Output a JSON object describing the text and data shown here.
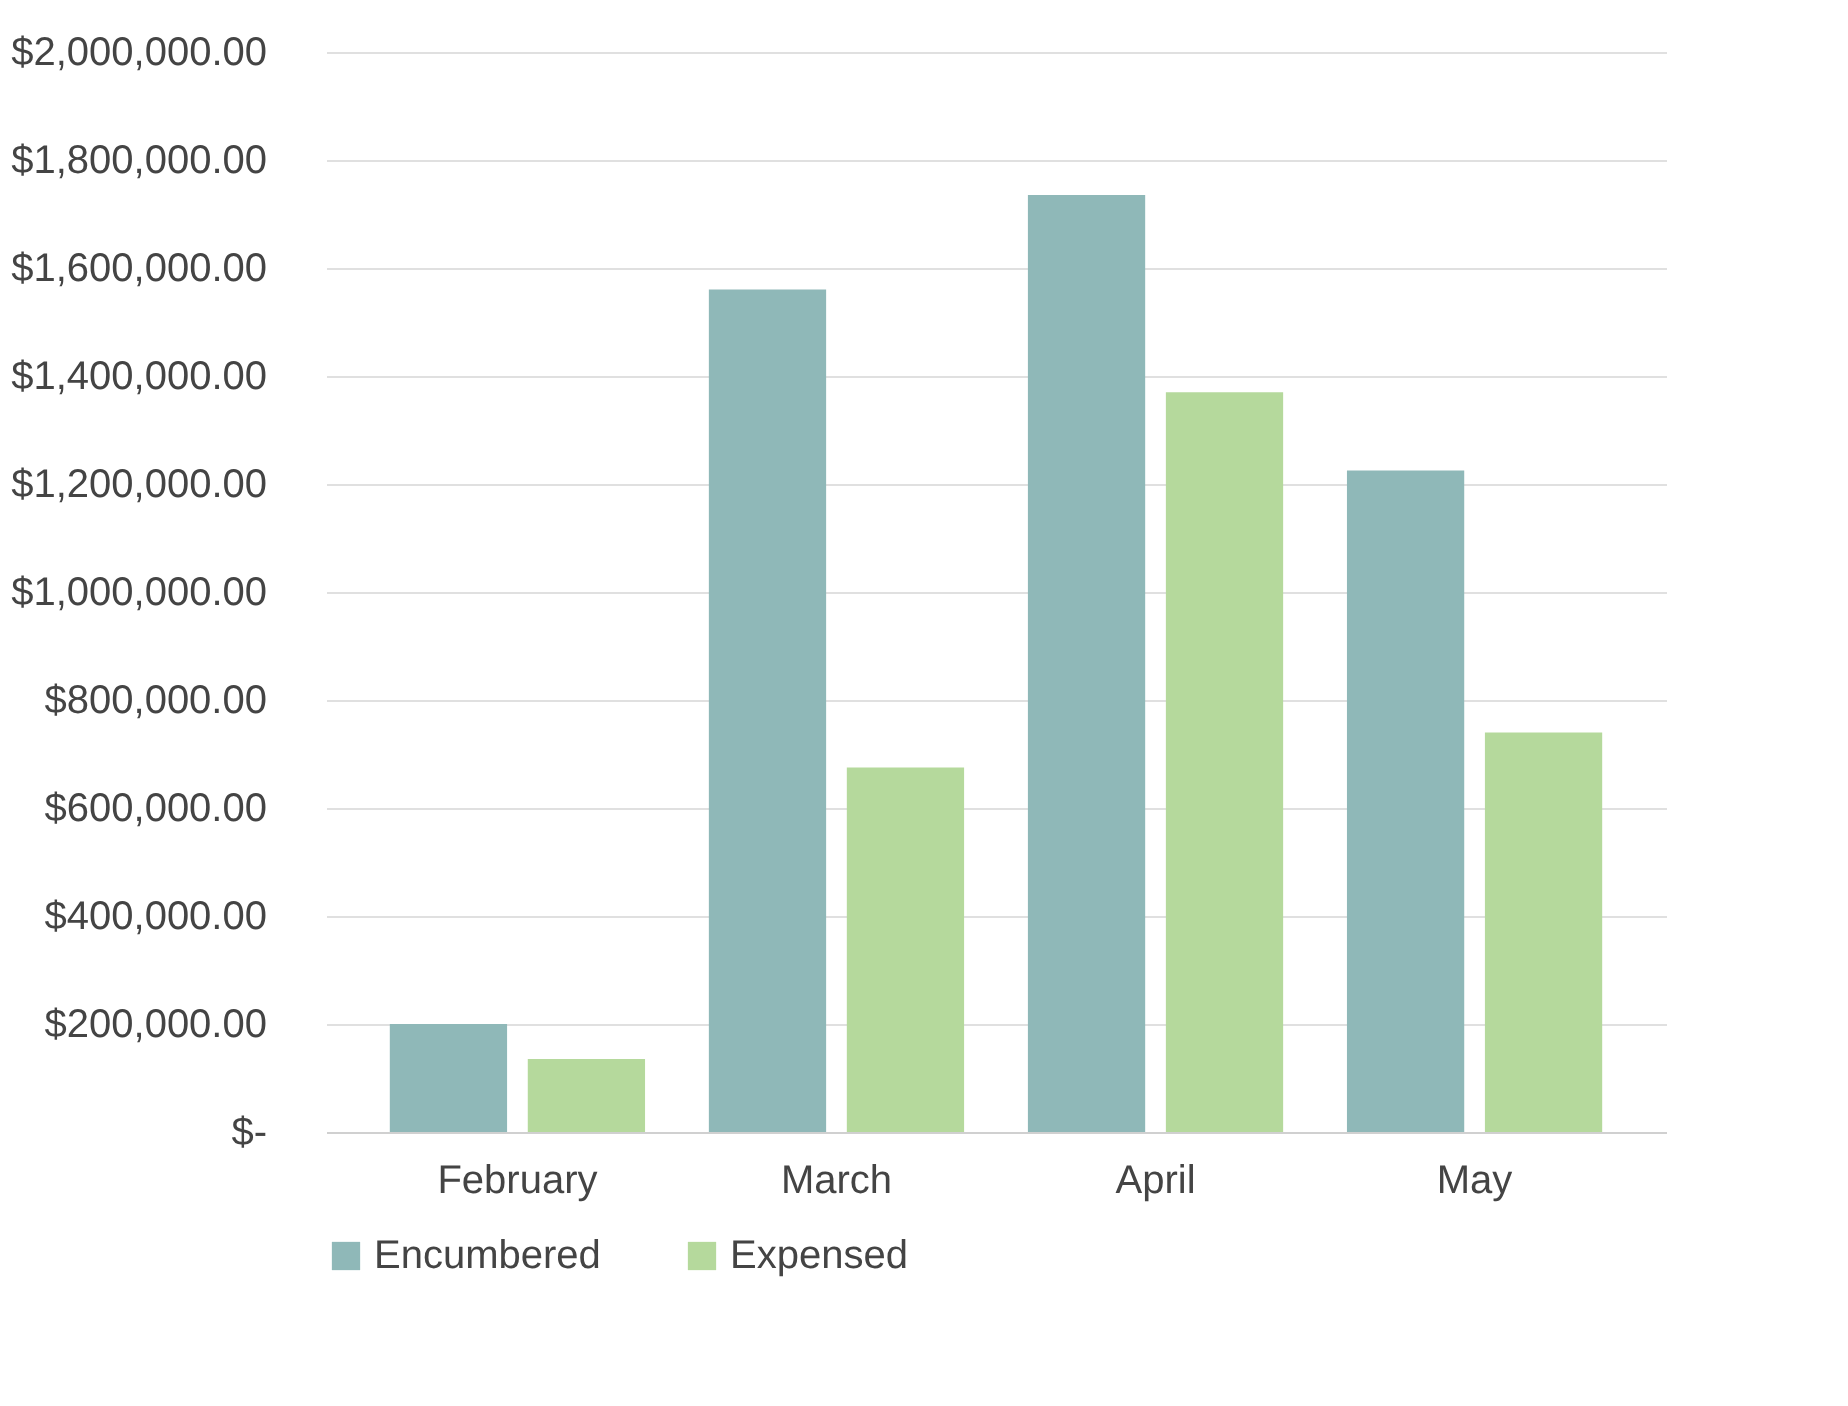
{
  "chart_data": {
    "type": "bar",
    "categories": [
      "February",
      "March",
      "April",
      "May"
    ],
    "series": [
      {
        "name": "Encumbered",
        "color": "#8fb8b8",
        "values": [
          200000,
          1560000,
          1735000,
          1225000
        ]
      },
      {
        "name": "Expensed",
        "color": "#b5d99c",
        "values": [
          135000,
          675000,
          1370000,
          740000
        ]
      }
    ],
    "ylim": [
      0,
      2000000
    ],
    "yticks": [
      {
        "value": 0,
        "label": "$-"
      },
      {
        "value": 200000,
        "label": "$200,000.00"
      },
      {
        "value": 400000,
        "label": "$400,000.00"
      },
      {
        "value": 600000,
        "label": "$600,000.00"
      },
      {
        "value": 800000,
        "label": "$800,000.00"
      },
      {
        "value": 1000000,
        "label": "$1,000,000.00"
      },
      {
        "value": 1200000,
        "label": "$1,200,000.00"
      },
      {
        "value": 1400000,
        "label": "$1,400,000.00"
      },
      {
        "value": 1600000,
        "label": "$1,600,000.00"
      },
      {
        "value": 1800000,
        "label": "$1,800,000.00"
      },
      {
        "value": 2000000,
        "label": "$2,000,000.00"
      }
    ],
    "grid": "y",
    "legend": "bottom"
  }
}
